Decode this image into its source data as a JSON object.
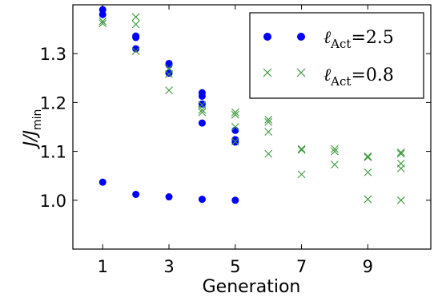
{
  "chart_data": {
    "type": "scatter",
    "title": "",
    "xlabel": "Generation",
    "ylabel_parts": {
      "base": "J/J",
      "subscript": "min"
    },
    "xlim": [
      0.1,
      10.9
    ],
    "ylim": [
      0.9,
      1.4
    ],
    "xticks": [
      1,
      3,
      5,
      7,
      9
    ],
    "xtick_labels": [
      "1",
      "3",
      "5",
      "7",
      "9"
    ],
    "yticks": [
      1.0,
      1.1,
      1.2,
      1.3
    ],
    "ytick_labels": [
      "1.0",
      "1.1",
      "1.2",
      "1.3"
    ],
    "legend_position": "top-right",
    "series": [
      {
        "name_parts": {
          "symbol": "ℓ",
          "subscript": "Act",
          "value": "=2.5"
        },
        "marker": "circle",
        "color": "#0000ff",
        "points": [
          [
            1,
            1.39
          ],
          [
            1,
            1.38
          ],
          [
            1,
            1.037
          ],
          [
            2,
            1.336
          ],
          [
            2,
            1.333
          ],
          [
            2,
            1.31
          ],
          [
            2,
            1.012
          ],
          [
            3,
            1.28
          ],
          [
            3,
            1.277
          ],
          [
            3,
            1.26
          ],
          [
            3,
            1.007
          ],
          [
            4,
            1.22
          ],
          [
            4,
            1.213
          ],
          [
            4,
            1.197
          ],
          [
            4,
            1.158
          ],
          [
            4,
            1.002
          ],
          [
            5,
            1.143
          ],
          [
            5,
            1.124
          ],
          [
            5,
            1.119
          ],
          [
            5,
            1.0
          ]
        ]
      },
      {
        "name_parts": {
          "symbol": "ℓ",
          "subscript": "Act",
          "value": "=0.8"
        },
        "marker": "x",
        "color": "#3c9a3c",
        "points": [
          [
            1,
            1.366
          ],
          [
            1,
            1.362
          ],
          [
            2,
            1.375
          ],
          [
            2,
            1.36
          ],
          [
            2,
            1.305
          ],
          [
            3,
            1.27
          ],
          [
            3,
            1.258
          ],
          [
            3,
            1.225
          ],
          [
            4,
            1.195
          ],
          [
            4,
            1.185
          ],
          [
            4,
            1.18
          ],
          [
            5,
            1.18
          ],
          [
            5,
            1.175
          ],
          [
            5,
            1.15
          ],
          [
            5,
            1.12
          ],
          [
            6,
            1.165
          ],
          [
            6,
            1.16
          ],
          [
            6,
            1.14
          ],
          [
            6,
            1.095
          ],
          [
            7,
            1.105
          ],
          [
            7,
            1.103
          ],
          [
            7,
            1.053
          ],
          [
            8,
            1.105
          ],
          [
            8,
            1.1
          ],
          [
            8,
            1.073
          ],
          [
            9,
            1.09
          ],
          [
            9,
            1.088
          ],
          [
            9,
            1.057
          ],
          [
            9,
            1.002
          ],
          [
            10,
            1.098
          ],
          [
            10,
            1.095
          ],
          [
            10,
            1.075
          ],
          [
            10,
            1.065
          ],
          [
            10,
            1.0
          ]
        ]
      }
    ]
  }
}
